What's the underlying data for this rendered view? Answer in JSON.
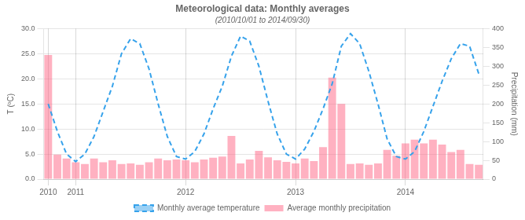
{
  "chart_data": {
    "type": "bar",
    "title": "Meteorological data: Monthly averages",
    "subtitle": "(2010/10/01 to 2014/09/30)",
    "ylabel": "T (ºC)",
    "y2label": "Precipitation (mm)",
    "categories": [
      "2010",
      null,
      null,
      "2011",
      null,
      null,
      null,
      null,
      null,
      null,
      null,
      null,
      null,
      null,
      null,
      "2012",
      null,
      null,
      null,
      null,
      null,
      null,
      null,
      null,
      null,
      null,
      null,
      "2013",
      null,
      null,
      null,
      null,
      null,
      null,
      null,
      null,
      null,
      null,
      null,
      "2014",
      null,
      null,
      null,
      null,
      null,
      null,
      null,
      null
    ],
    "series": [
      {
        "name": "Monthly average temperature",
        "type": "line",
        "line_style": "dashed",
        "values": [
          15.0,
          9.5,
          5.0,
          3.5,
          5.0,
          8.5,
          13.5,
          18.5,
          25.0,
          28.0,
          27.0,
          22.0,
          15.0,
          8.5,
          4.5,
          4.0,
          5.5,
          9.0,
          14.0,
          18.5,
          24.5,
          28.5,
          27.5,
          22.5,
          15.5,
          9.0,
          5.0,
          4.0,
          6.0,
          9.5,
          14.0,
          19.0,
          26.5,
          29.0,
          27.0,
          21.5,
          15.0,
          8.0,
          4.5,
          4.0,
          5.5,
          9.5,
          14.5,
          19.5,
          24.0,
          27.0,
          26.5,
          21.0
        ]
      },
      {
        "name": "Average monthly precipitation",
        "type": "bar",
        "axis": "y2",
        "values": [
          330,
          65,
          55,
          45,
          40,
          55,
          45,
          50,
          40,
          42,
          38,
          45,
          55,
          50,
          52,
          50,
          45,
          52,
          57,
          60,
          115,
          42,
          52,
          75,
          58,
          50,
          46,
          42,
          55,
          48,
          85,
          270,
          200,
          40,
          42,
          38,
          42,
          78,
          62,
          95,
          105,
          95,
          105,
          92,
          72,
          78,
          40,
          38
        ]
      }
    ],
    "ylim": [
      0.0,
      30.0
    ],
    "yticks": [
      {
        "value": 0.0,
        "label": "0.0"
      },
      {
        "value": 5.0,
        "label": "5.0"
      },
      {
        "value": 10.0,
        "label": "10.0"
      },
      {
        "value": 15.0,
        "label": "15.0"
      },
      {
        "value": 20.0,
        "label": "20.0"
      },
      {
        "value": 25.0,
        "label": "25.0"
      },
      {
        "value": 30.0,
        "label": "30.0"
      }
    ],
    "y2lim": [
      0,
      400
    ],
    "y2ticks": [
      0,
      50,
      100,
      150,
      200,
      250,
      300,
      350,
      400
    ],
    "grid": true,
    "legend": "bottom"
  }
}
